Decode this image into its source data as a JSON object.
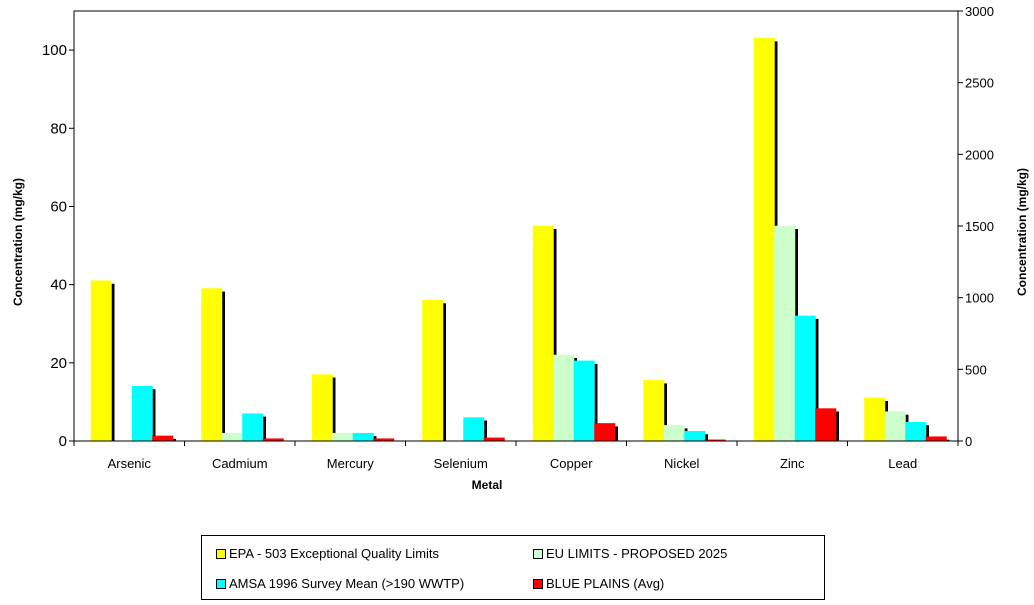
{
  "chart_data": {
    "type": "bar",
    "xlabel": "Metal",
    "ylabel": "Concentration (mg/kg)",
    "ylabel_right": "Concentration (mg/kg)",
    "categories": [
      "Arsenic",
      "Cadmium",
      "Mercury",
      "Selenium",
      "Copper",
      "Nickel",
      "Zinc",
      "Lead"
    ],
    "ylim": [
      0,
      110
    ],
    "ylim_right": [
      0,
      3000
    ],
    "yticks": [
      0,
      20,
      40,
      60,
      80,
      100
    ],
    "yticks_right": [
      0,
      500,
      1000,
      1500,
      2000,
      2500,
      3000
    ],
    "legend_position": "bottom",
    "series": [
      {
        "name": "EPA - 503 Exceptional Quality Limits",
        "color": "#FFFF00",
        "values": [
          41,
          39,
          17,
          36,
          55,
          15.5,
          103,
          11
        ]
      },
      {
        "name": "EU LIMITS - PROPOSED 2025",
        "color": "#CCFFCC",
        "values": [
          0,
          2,
          2,
          0,
          22,
          4,
          55,
          7.5
        ]
      },
      {
        "name": "AMSA 1996 Survey Mean (>190 WWTP)",
        "color": "#00FFFF",
        "values": [
          14,
          7,
          2,
          6,
          20.5,
          2.5,
          32,
          4.8
        ]
      },
      {
        "name": "BLUE PLAINS (Avg)",
        "color": "#FF0000",
        "values": [
          1.3,
          0.6,
          0.6,
          0.8,
          4.5,
          0.3,
          8.3,
          1.1
        ]
      }
    ]
  }
}
